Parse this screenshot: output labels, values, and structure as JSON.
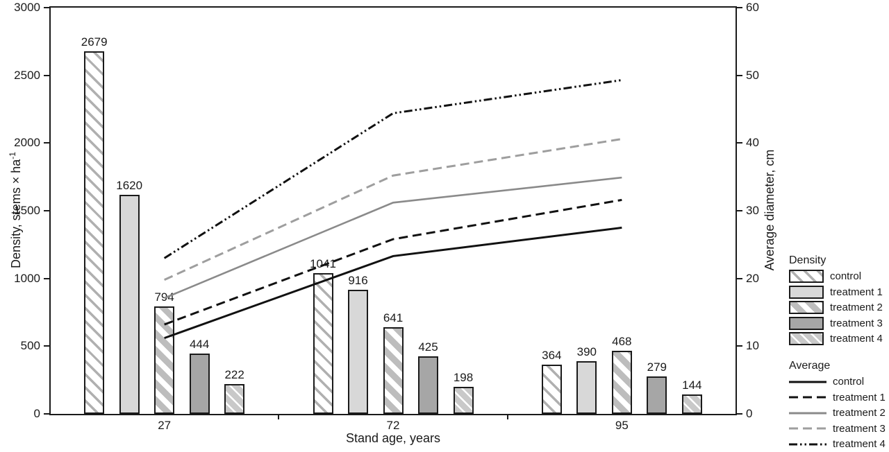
{
  "chart_data": {
    "type": "bar+line",
    "title": "",
    "categories": [
      "27",
      "72",
      "95"
    ],
    "xlabel": "Stand age, years",
    "ylabel_left": {
      "text": "Density,  stems × ha",
      "sup": "-1"
    },
    "ylabel_right": "Average diameter, cm",
    "yleft": {
      "min": 0,
      "max": 3000,
      "step": 500
    },
    "yright": {
      "min": 0,
      "max": 60,
      "step": 10
    },
    "grid": "off",
    "legend_position": "right",
    "bar_series": [
      {
        "name": "control",
        "pattern": "hatch-thin",
        "values": [
          2679,
          1041,
          364
        ]
      },
      {
        "name": "treatment 1",
        "pattern": "solid-light",
        "values": [
          1620,
          916,
          390
        ]
      },
      {
        "name": "treatment 2",
        "pattern": "hatch-wide",
        "values": [
          794,
          641,
          468
        ]
      },
      {
        "name": "treatment 3",
        "pattern": "solid-medium",
        "values": [
          444,
          425,
          279
        ]
      },
      {
        "name": "treatment 4",
        "pattern": "hatch-white",
        "values": [
          222,
          198,
          144
        ]
      }
    ],
    "line_series": [
      {
        "name": "control",
        "color": "#111111",
        "dash": "solid",
        "values": [
          11.2,
          23.3,
          27.5
        ]
      },
      {
        "name": "treatment 1",
        "color": "#111111",
        "dash": "dashed",
        "values": [
          13.2,
          25.8,
          31.6
        ]
      },
      {
        "name": "treatment 2",
        "color": "#8a8a8a",
        "dash": "solid",
        "values": [
          17.1,
          31.2,
          34.9
        ]
      },
      {
        "name": "treatment 3",
        "color": "#9e9e9e",
        "dash": "dashed",
        "values": [
          19.8,
          35.2,
          40.6
        ]
      },
      {
        "name": "treatment 4",
        "color": "#111111",
        "dash": "dashdotdot",
        "values": [
          23.0,
          44.4,
          49.3
        ]
      }
    ],
    "legend": {
      "density_title": "Density",
      "average_title": "Average"
    }
  }
}
